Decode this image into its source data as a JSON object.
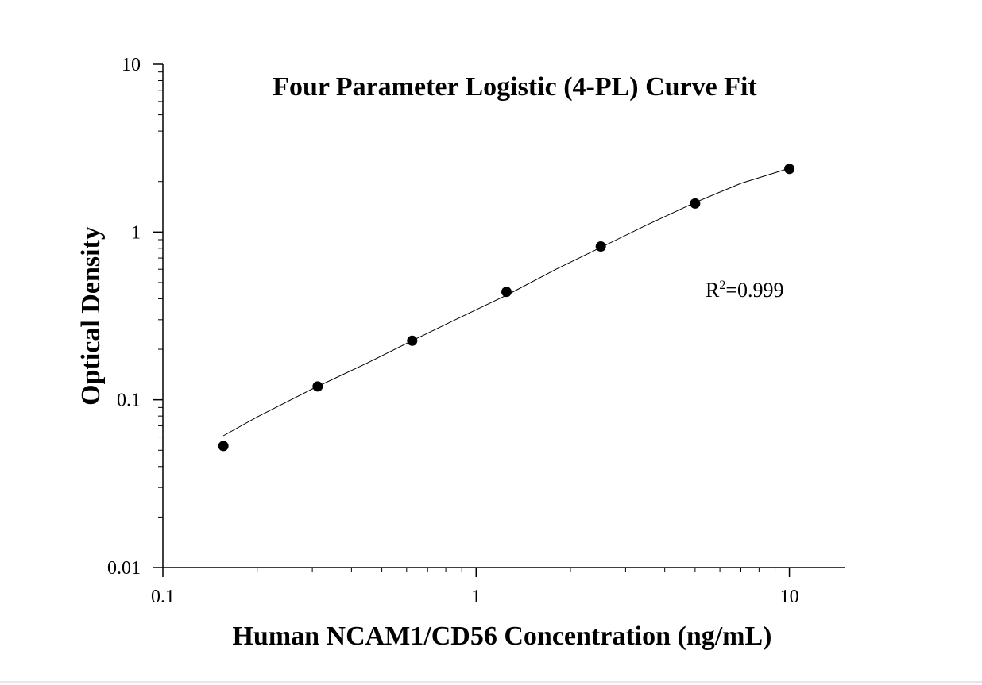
{
  "chart_data": {
    "type": "scatter",
    "title": "Four Parameter Logistic (4-PL) Curve Fit",
    "xlabel": "Human NCAM1/CD56 Concentration (ng/mL)",
    "ylabel": "Optical Density",
    "xscale": "log",
    "yscale": "log",
    "xlim": [
      0.1,
      15
    ],
    "ylim": [
      0.01,
      10
    ],
    "x_ticks": [
      "0.1",
      "1",
      "10"
    ],
    "y_ticks": [
      "0.01",
      "0.1",
      "1",
      "10"
    ],
    "grid": false,
    "legend": "none",
    "series": [
      {
        "x": [
          0.156,
          0.312,
          0.625,
          1.25,
          2.5,
          5,
          10
        ],
        "y": [
          0.053,
          0.12,
          0.225,
          0.44,
          0.82,
          1.48,
          2.38
        ]
      }
    ],
    "fit_curve": {
      "model": "4-PL",
      "x": [
        0.156,
        0.2,
        0.3,
        0.45,
        0.625,
        0.9,
        1.25,
        1.8,
        2.5,
        3.5,
        5,
        7,
        10
      ],
      "y": [
        0.061,
        0.079,
        0.116,
        0.166,
        0.225,
        0.313,
        0.42,
        0.6,
        0.81,
        1.1,
        1.5,
        1.95,
        2.4
      ]
    },
    "annotation": {
      "prefix": "R",
      "superscript": "2",
      "text": "=0.999"
    },
    "colors": {
      "points": "#000000",
      "curve": "#000000",
      "axes": "#000000"
    }
  }
}
